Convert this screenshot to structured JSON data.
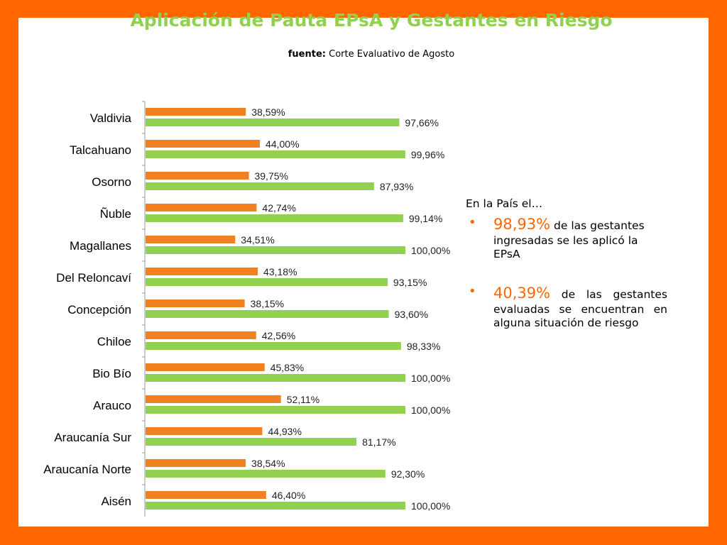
{
  "header": {
    "title": "Aplicación de Pauta EPsA y Gestantes en Riesgo",
    "source_label": "fuente:",
    "source_text": "Corte Evaluativo de Agosto"
  },
  "side_panel": {
    "intro": "En la País el…",
    "items": [
      {
        "bullet": "•",
        "value": "98,93%",
        "text": "de las gestantes ingresadas se les aplicó la EPsA"
      },
      {
        "bullet": "•",
        "value": "40,39%",
        "text": "de las gestantes evaluadas se encuentran en alguna situación de riesgo"
      }
    ]
  },
  "colors": {
    "orange": "#F08020",
    "green": "#92D050",
    "frame": "#FF6600"
  },
  "chart_data": {
    "type": "bar",
    "orientation": "horizontal",
    "categories": [
      "Valdivia",
      "Talcahuano",
      "Osorno",
      "Ñuble",
      "Magallanes",
      "Del Reloncaví",
      "Concepción",
      "Chiloe",
      "Bio Bío",
      "Arauco",
      "Araucanía Sur",
      "Araucanía Norte",
      "Aisén"
    ],
    "series": [
      {
        "color": "#F08020",
        "values": [
          38.59,
          44.0,
          39.75,
          42.74,
          34.51,
          43.18,
          38.15,
          42.56,
          45.83,
          52.11,
          44.93,
          38.54,
          46.4
        ],
        "labels": [
          "38,59%",
          "44,00%",
          "39,75%",
          "42,74%",
          "34,51%",
          "43,18%",
          "38,15%",
          "42,56%",
          "45,83%",
          "52,11%",
          "44,93%",
          "38,54%",
          "46,40%"
        ]
      },
      {
        "color": "#92D050",
        "values": [
          97.66,
          99.96,
          87.93,
          99.14,
          100.0,
          93.15,
          93.6,
          98.33,
          100.0,
          100.0,
          81.17,
          92.3,
          100.0
        ],
        "labels": [
          "97,66%",
          "99,96%",
          "87,93%",
          "99,14%",
          "100,00%",
          "93,15%",
          "93,60%",
          "98,33%",
          "100,00%",
          "100,00%",
          "81,17%",
          "92,30%",
          "100,00%"
        ]
      }
    ],
    "xlim": [
      0,
      100
    ],
    "grid": false,
    "legend": "none"
  }
}
